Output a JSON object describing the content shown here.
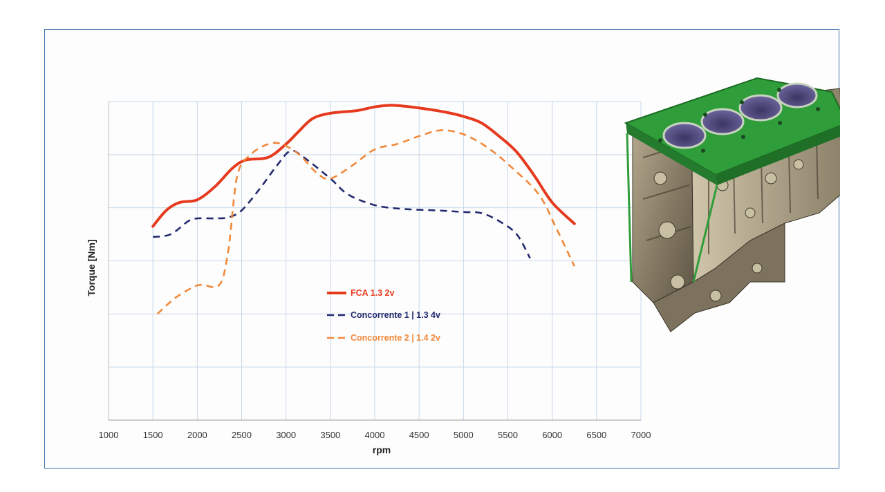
{
  "chart_data": {
    "type": "line",
    "xlabel": "rpm",
    "ylabel": "Torque [Nm]",
    "xlim": [
      1000,
      7000
    ],
    "x_ticks": [
      "1000",
      "1500",
      "2000",
      "2500",
      "3000",
      "3500",
      "4000",
      "4500",
      "5000",
      "5500",
      "6000",
      "6500",
      "7000"
    ],
    "ylim": [
      0,
      6
    ],
    "y_tick_labels_shown": false,
    "grid": true,
    "legend_position": "center-left",
    "series": [
      {
        "name": "FCA 1.3 2v",
        "color": "#e63a1e",
        "style": "solid",
        "points": [
          [
            1500,
            3.65
          ],
          [
            1650,
            3.95
          ],
          [
            1800,
            4.1
          ],
          [
            2000,
            4.15
          ],
          [
            2200,
            4.4
          ],
          [
            2400,
            4.75
          ],
          [
            2550,
            4.9
          ],
          [
            2800,
            4.95
          ],
          [
            3000,
            5.2
          ],
          [
            3150,
            5.45
          ],
          [
            3300,
            5.68
          ],
          [
            3500,
            5.78
          ],
          [
            3800,
            5.83
          ],
          [
            4000,
            5.9
          ],
          [
            4200,
            5.93
          ],
          [
            4500,
            5.88
          ],
          [
            4800,
            5.8
          ],
          [
            5000,
            5.72
          ],
          [
            5200,
            5.6
          ],
          [
            5400,
            5.35
          ],
          [
            5600,
            5.05
          ],
          [
            5800,
            4.6
          ],
          [
            6000,
            4.1
          ],
          [
            6250,
            3.7
          ]
        ]
      },
      {
        "name": "Concorrente 1 | 1.3 4v",
        "color": "#232a6e",
        "style": "dashed",
        "points": [
          [
            1500,
            3.45
          ],
          [
            1700,
            3.5
          ],
          [
            1900,
            3.75
          ],
          [
            2000,
            3.8
          ],
          [
            2200,
            3.8
          ],
          [
            2350,
            3.82
          ],
          [
            2500,
            3.95
          ],
          [
            2700,
            4.35
          ],
          [
            2900,
            4.8
          ],
          [
            3050,
            5.07
          ],
          [
            3200,
            4.95
          ],
          [
            3500,
            4.55
          ],
          [
            3700,
            4.25
          ],
          [
            4000,
            4.05
          ],
          [
            4300,
            3.98
          ],
          [
            4700,
            3.95
          ],
          [
            5000,
            3.92
          ],
          [
            5200,
            3.9
          ],
          [
            5400,
            3.75
          ],
          [
            5600,
            3.5
          ],
          [
            5750,
            3.05
          ]
        ]
      },
      {
        "name": "Concorrente 2 | 1.4 2v",
        "color": "#f0883a",
        "style": "dashed",
        "points": [
          [
            1550,
            2.0
          ],
          [
            1750,
            2.3
          ],
          [
            1950,
            2.5
          ],
          [
            2050,
            2.55
          ],
          [
            2250,
            2.55
          ],
          [
            2350,
            3.2
          ],
          [
            2450,
            4.6
          ],
          [
            2600,
            5.0
          ],
          [
            2800,
            5.2
          ],
          [
            2950,
            5.2
          ],
          [
            3150,
            5.0
          ],
          [
            3350,
            4.65
          ],
          [
            3500,
            4.55
          ],
          [
            3750,
            4.8
          ],
          [
            4000,
            5.1
          ],
          [
            4250,
            5.2
          ],
          [
            4500,
            5.35
          ],
          [
            4700,
            5.45
          ],
          [
            4850,
            5.45
          ],
          [
            5050,
            5.35
          ],
          [
            5300,
            5.1
          ],
          [
            5550,
            4.75
          ],
          [
            5850,
            4.25
          ],
          [
            6050,
            3.6
          ],
          [
            6250,
            2.9
          ]
        ]
      }
    ]
  }
}
